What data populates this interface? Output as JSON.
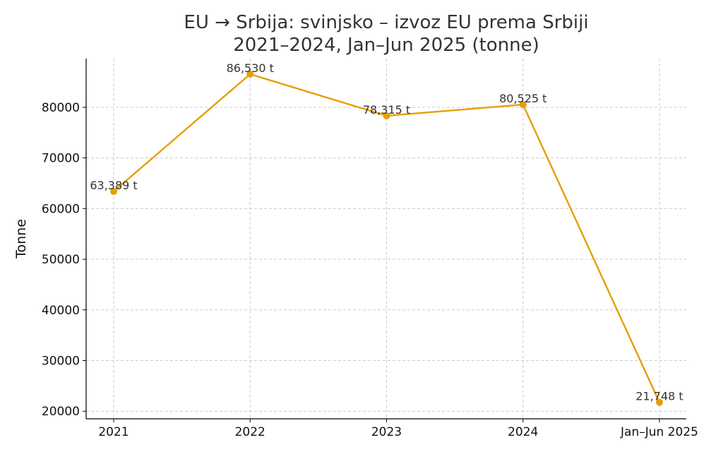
{
  "chart_data": {
    "type": "line",
    "title": "EU → Srbija: svinjsko – izvoz EU prema Srbiji",
    "subtitle": "2021–2024, Jan–Jun 2025 (tonne)",
    "xlabel": "",
    "ylabel": "Tonne",
    "categories": [
      "2021",
      "2022",
      "2023",
      "2024",
      "Jan–Jun 2025"
    ],
    "series": [
      {
        "values": [
          63389,
          86530,
          78315,
          80525,
          21748
        ]
      }
    ],
    "data_labels": [
      "63,389 t",
      "86,530 t",
      "78,315 t",
      "80,525 t",
      "21,748 t"
    ],
    "yticks": [
      20000,
      30000,
      40000,
      50000,
      60000,
      70000,
      80000
    ],
    "ylim": [
      18500,
      89600
    ],
    "grid": true,
    "color": "#E69F00"
  }
}
